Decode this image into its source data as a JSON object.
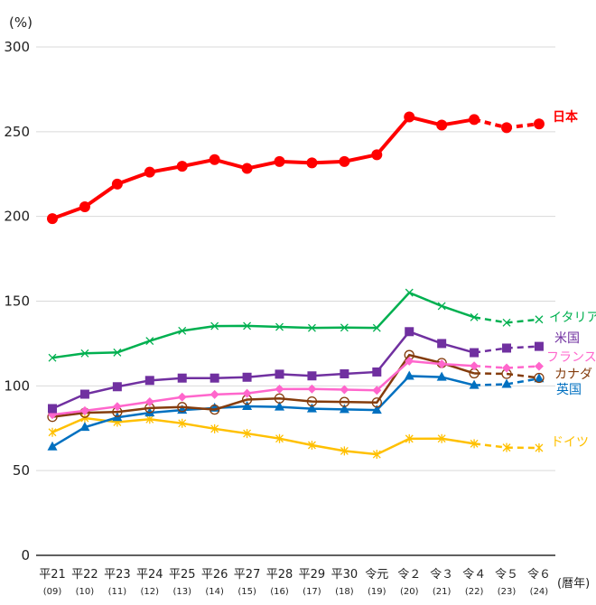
{
  "chart_data": {
    "type": "line",
    "yunit": "(%)",
    "xunit": "(暦年)",
    "ylim": [
      0,
      300
    ],
    "yticks": [
      0,
      50,
      100,
      150,
      200,
      250,
      300
    ],
    "grid": true,
    "categories": [
      "平21",
      "平22",
      "平23",
      "平24",
      "平25",
      "平26",
      "平27",
      "平28",
      "平29",
      "平30",
      "令元",
      "令２",
      "令３",
      "令４",
      "令５",
      "令６"
    ],
    "categories_sub": [
      "(09)",
      "(10)",
      "(11)",
      "(12)",
      "(13)",
      "(14)",
      "(15)",
      "(16)",
      "(17)",
      "(18)",
      "(19)",
      "(20)",
      "(21)",
      "(22)",
      "(23)",
      "(24)"
    ],
    "dashed_from_index": 13,
    "series": [
      {
        "name": "日本",
        "color": "#ff0000",
        "marker": "circle-filled",
        "values": [
          198.7,
          205.7,
          219.1,
          226.1,
          229.6,
          233.5,
          228.3,
          232.4,
          231.6,
          232.4,
          236.4,
          258.7,
          253.9,
          257.2,
          252.4,
          254.6
        ]
      },
      {
        "name": "イタリア",
        "color": "#00b050",
        "marker": "x",
        "values": [
          116.6,
          119.2,
          119.7,
          126.5,
          132.5,
          135.3,
          135.4,
          134.8,
          134.2,
          134.4,
          134.2,
          155.0,
          147.1,
          140.5,
          137.3,
          139.2
        ]
      },
      {
        "name": "米国",
        "color": "#7030a0",
        "marker": "square",
        "values": [
          86.6,
          95.1,
          99.5,
          103.2,
          104.6,
          104.6,
          105.1,
          106.9,
          105.9,
          107.1,
          108.2,
          132.0,
          125.0,
          119.6,
          122.3,
          123.3
        ]
      },
      {
        "name": "フランス",
        "color": "#ff66cc",
        "marker": "diamond",
        "values": [
          83.0,
          85.3,
          87.8,
          90.6,
          93.4,
          94.9,
          95.6,
          98.1,
          98.2,
          97.8,
          97.4,
          114.6,
          112.9,
          111.8,
          110.6,
          111.6
        ]
      },
      {
        "name": "カナダ",
        "color": "#843c0c",
        "marker": "circle-open",
        "values": [
          81.7,
          84.1,
          84.6,
          86.9,
          87.5,
          86.0,
          91.9,
          92.6,
          90.8,
          90.5,
          90.2,
          118.2,
          113.5,
          107.4,
          107.1,
          104.7
        ]
      },
      {
        "name": "英国",
        "color": "#0070c0",
        "marker": "triangle",
        "values": [
          64.1,
          75.6,
          81.4,
          84.1,
          85.7,
          86.9,
          87.9,
          87.6,
          86.5,
          86.1,
          85.7,
          105.8,
          105.2,
          100.4,
          101.0,
          104.3
        ]
      },
      {
        "name": "ドイツ",
        "color": "#ffc000",
        "marker": "asterisk",
        "values": [
          72.6,
          81.0,
          78.6,
          80.3,
          77.9,
          74.7,
          71.9,
          68.9,
          65.0,
          61.6,
          59.6,
          68.8,
          68.9,
          65.9,
          63.6,
          63.4
        ]
      }
    ]
  }
}
